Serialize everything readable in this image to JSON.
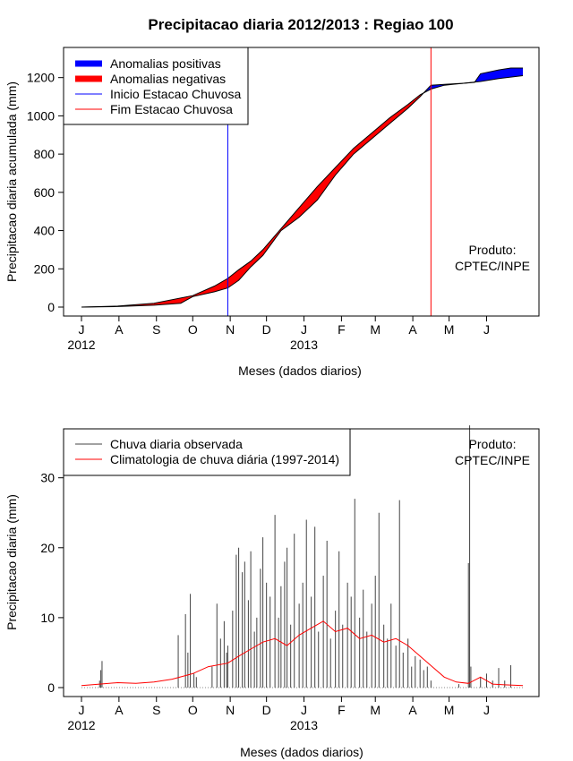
{
  "chart_data": [
    {
      "type": "area",
      "title": "Precipitacao diaria 2012/2013 : Regiao 100",
      "xlabel": "Meses (dados diarios)",
      "ylabel": "Precipitacao diaria acumulada (mm)",
      "ylim": [
        0,
        1250
      ],
      "yticks": [
        0,
        200,
        400,
        600,
        800,
        1000,
        1200
      ],
      "months": [
        "J",
        "A",
        "S",
        "O",
        "N",
        "D",
        "J",
        "F",
        "M",
        "A",
        "M",
        "J"
      ],
      "year_labels": [
        {
          "month_index": 0,
          "text": "2012"
        },
        {
          "month_index": 6,
          "text": "2013"
        }
      ],
      "day_range": [
        0,
        365
      ],
      "legend": {
        "placement": "top-left",
        "entries": [
          {
            "label": "Anomalias positivas",
            "color": "#0000ff",
            "style": "thick"
          },
          {
            "label": "Anomalias negativas",
            "color": "#ff0000",
            "style": "thick"
          },
          {
            "label": "Inicio Estacao Chuvosa",
            "color": "#0000ff",
            "style": "thin"
          },
          {
            "label": "Fim Estacao Chuvosa",
            "color": "#ff0000",
            "style": "thin"
          }
        ]
      },
      "product": [
        "Produto:",
        "CPTEC/INPE"
      ],
      "rain_season_start_day": 121,
      "rain_season_end_day": 289,
      "observed_cumulative": {
        "days": [
          0,
          30,
          60,
          82,
          92,
          110,
          121,
          130,
          140,
          150,
          165,
          180,
          195,
          210,
          225,
          240,
          255,
          270,
          280,
          289,
          300,
          315,
          325,
          330,
          345,
          355,
          365
        ],
        "values": [
          0,
          3,
          10,
          20,
          55,
          80,
          100,
          140,
          210,
          270,
          400,
          470,
          560,
          690,
          800,
          880,
          960,
          1040,
          1100,
          1160,
          1165,
          1170,
          1175,
          1220,
          1240,
          1250,
          1250
        ]
      },
      "climatology_cumulative": {
        "days": [
          0,
          30,
          60,
          92,
          110,
          121,
          130,
          140,
          150,
          165,
          180,
          195,
          210,
          225,
          240,
          255,
          270,
          280,
          289,
          300,
          315,
          330,
          345,
          365
        ],
        "values": [
          0,
          5,
          20,
          60,
          110,
          150,
          195,
          240,
          300,
          410,
          520,
          630,
          730,
          830,
          910,
          990,
          1060,
          1110,
          1140,
          1160,
          1170,
          1180,
          1195,
          1210
        ]
      }
    },
    {
      "type": "bar",
      "xlabel": "Meses (dados diarios)",
      "ylabel": "Precipitacao diaria (mm)",
      "ylim": [
        0,
        37
      ],
      "yticks": [
        0,
        10,
        20,
        30
      ],
      "months": [
        "J",
        "A",
        "S",
        "O",
        "N",
        "D",
        "J",
        "F",
        "M",
        "A",
        "M",
        "J"
      ],
      "year_labels": [
        {
          "month_index": 0,
          "text": "2012"
        },
        {
          "month_index": 6,
          "text": "2013"
        }
      ],
      "day_range": [
        0,
        365
      ],
      "legend": {
        "placement": "top-left",
        "entries": [
          {
            "label": "Chuva diaria observada",
            "color": "#444444"
          },
          {
            "label": "Climatologia de chuva diária (1997-2014)",
            "color": "#ff0000"
          }
        ]
      },
      "product": [
        "Produto:",
        "CPTEC/INPE"
      ],
      "observed_daily": {
        "days": [
          15,
          16,
          17,
          80,
          86,
          88,
          90,
          93,
          95,
          108,
          112,
          115,
          118,
          120,
          121,
          125,
          128,
          130,
          133,
          135,
          138,
          140,
          143,
          145,
          148,
          150,
          153,
          156,
          160,
          163,
          165,
          168,
          170,
          173,
          176,
          180,
          183,
          186,
          190,
          193,
          196,
          200,
          203,
          206,
          210,
          213,
          216,
          220,
          223,
          226,
          230,
          233,
          236,
          240,
          243,
          246,
          250,
          253,
          256,
          260,
          263,
          266,
          270,
          273,
          276,
          280,
          283,
          286,
          289,
          312,
          320,
          321,
          322,
          330,
          335,
          340,
          345,
          350,
          355
        ],
        "values": [
          1.0,
          2.5,
          3.8,
          7.5,
          10.5,
          5.0,
          13.4,
          2.0,
          1.5,
          3.0,
          12.0,
          7.0,
          9.5,
          5.0,
          6.0,
          11.0,
          19.0,
          20.0,
          16.5,
          18.0,
          12.5,
          19.5,
          8.0,
          10.0,
          17.0,
          21.5,
          15.0,
          13.0,
          24.7,
          10.0,
          14.5,
          18.0,
          20.0,
          9.0,
          22.0,
          12.0,
          15.0,
          24.0,
          13.0,
          23.0,
          8.0,
          16.0,
          21.0,
          7.0,
          11.0,
          19.5,
          9.0,
          15.0,
          13.0,
          27.0,
          10.0,
          14.0,
          8.0,
          12.0,
          16.0,
          25.0,
          9.0,
          7.0,
          12.0,
          6.0,
          26.8,
          5.0,
          7.0,
          3.0,
          4.5,
          4.0,
          2.5,
          3.0,
          1.0,
          0.5,
          17.8,
          37.5,
          3.0,
          1.5,
          2.0,
          1.0,
          2.8,
          1.0,
          3.2
        ]
      },
      "climatology_daily": {
        "days": [
          0,
          15,
          30,
          45,
          60,
          75,
          92,
          105,
          121,
          130,
          140,
          150,
          160,
          170,
          180,
          190,
          200,
          210,
          220,
          230,
          240,
          250,
          260,
          270,
          280,
          290,
          300,
          310,
          320,
          330,
          340,
          350,
          365
        ],
        "values": [
          0.3,
          0.5,
          0.7,
          0.6,
          0.8,
          1.2,
          2.0,
          3.0,
          3.5,
          4.5,
          5.5,
          6.5,
          7.0,
          6.0,
          7.5,
          8.5,
          9.5,
          8.0,
          8.5,
          7.0,
          7.5,
          6.5,
          7.0,
          6.0,
          4.5,
          3.0,
          1.5,
          0.8,
          0.6,
          1.5,
          0.5,
          0.4,
          0.3
        ]
      }
    }
  ]
}
